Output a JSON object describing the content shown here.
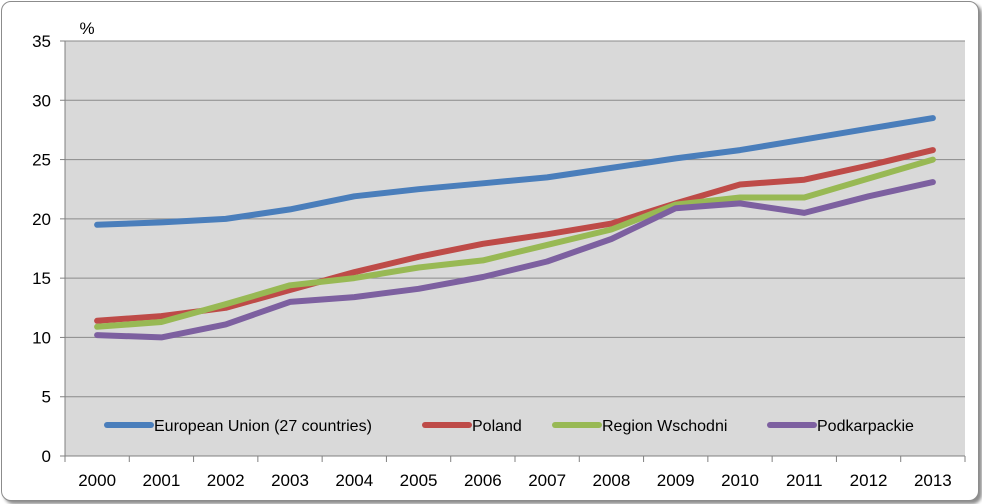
{
  "chart_data": {
    "type": "line",
    "title": "",
    "xlabel": "",
    "ylabel": "%",
    "ylim": [
      0,
      35
    ],
    "yticks": [
      0,
      5,
      10,
      15,
      20,
      25,
      30,
      35
    ],
    "grid": true,
    "legend_position": "bottom-inside",
    "background": "#d9d9d9",
    "x": [
      "2000",
      "2001",
      "2002",
      "2003",
      "2004",
      "2005",
      "2006",
      "2007",
      "2008",
      "2009",
      "2010",
      "2011",
      "2012",
      "2013"
    ],
    "series": [
      {
        "name": "European Union (27 countries)",
        "color": "#4a7ebb",
        "values": [
          19.5,
          19.7,
          20.0,
          20.8,
          21.9,
          22.5,
          23.0,
          23.5,
          24.3,
          25.1,
          25.8,
          26.7,
          27.6,
          28.5
        ]
      },
      {
        "name": "Poland",
        "color": "#be4b48",
        "values": [
          11.4,
          11.8,
          12.5,
          14.0,
          15.5,
          16.8,
          17.9,
          18.7,
          19.6,
          21.3,
          22.9,
          23.3,
          24.5,
          25.8
        ]
      },
      {
        "name": "Region Wschodni",
        "color": "#98b954",
        "values": [
          10.9,
          11.3,
          12.8,
          14.4,
          15.0,
          15.9,
          16.5,
          17.8,
          19.1,
          21.2,
          21.8,
          21.8,
          23.4,
          25.0
        ]
      },
      {
        "name": "Podkarpackie",
        "color": "#7d60a0",
        "values": [
          10.2,
          10.0,
          11.1,
          13.0,
          13.4,
          14.1,
          15.1,
          16.4,
          18.3,
          20.9,
          21.3,
          20.5,
          21.9,
          23.1
        ]
      }
    ]
  }
}
